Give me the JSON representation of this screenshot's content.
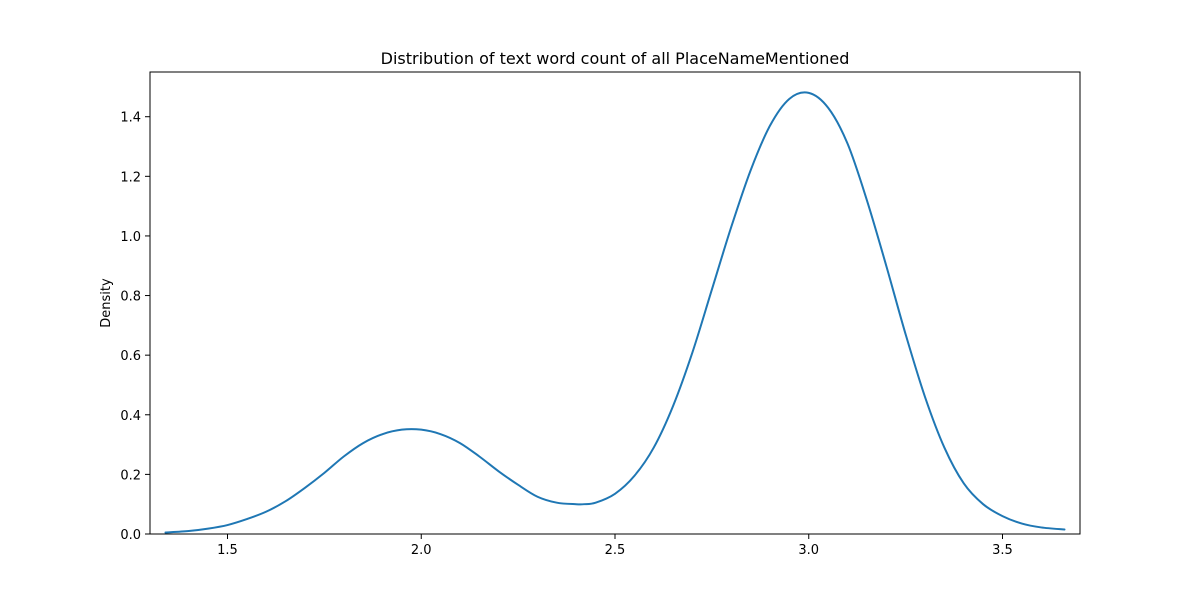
{
  "chart_data": {
    "type": "line",
    "title": "Distribution of text word count of all PlaceNameMentioned",
    "xlabel": "",
    "ylabel": "Density",
    "xlim": [
      1.3,
      3.7
    ],
    "ylim": [
      0.0,
      1.55
    ],
    "x_ticks": [
      1.5,
      2.0,
      2.5,
      3.0,
      3.5
    ],
    "x_tick_labels": [
      "1.5",
      "2.0",
      "2.5",
      "3.0",
      "3.5"
    ],
    "y_ticks": [
      0.0,
      0.2,
      0.4,
      0.6,
      0.8,
      1.0,
      1.2,
      1.4
    ],
    "y_tick_labels": [
      "0.0",
      "0.2",
      "0.4",
      "0.6",
      "0.8",
      "1.0",
      "1.2",
      "1.4"
    ],
    "grid": false,
    "series_color": "#1f77b4",
    "series": [
      {
        "x": [
          1.34,
          1.4,
          1.45,
          1.5,
          1.55,
          1.6,
          1.65,
          1.7,
          1.75,
          1.8,
          1.85,
          1.9,
          1.95,
          2.0,
          2.05,
          2.1,
          2.15,
          2.2,
          2.25,
          2.3,
          2.35,
          2.4,
          2.42,
          2.45,
          2.5,
          2.55,
          2.6,
          2.65,
          2.7,
          2.75,
          2.8,
          2.85,
          2.9,
          2.95,
          3.0,
          3.05,
          3.1,
          3.15,
          3.2,
          3.25,
          3.3,
          3.35,
          3.4,
          3.45,
          3.5,
          3.55,
          3.6,
          3.66
        ],
        "y": [
          0.005,
          0.01,
          0.018,
          0.03,
          0.05,
          0.075,
          0.11,
          0.155,
          0.205,
          0.26,
          0.305,
          0.335,
          0.35,
          0.35,
          0.335,
          0.305,
          0.26,
          0.21,
          0.165,
          0.125,
          0.105,
          0.1,
          0.1,
          0.105,
          0.135,
          0.195,
          0.29,
          0.43,
          0.61,
          0.82,
          1.03,
          1.22,
          1.37,
          1.46,
          1.48,
          1.43,
          1.31,
          1.12,
          0.9,
          0.67,
          0.46,
          0.29,
          0.17,
          0.1,
          0.06,
          0.035,
          0.022,
          0.015
        ]
      }
    ]
  }
}
